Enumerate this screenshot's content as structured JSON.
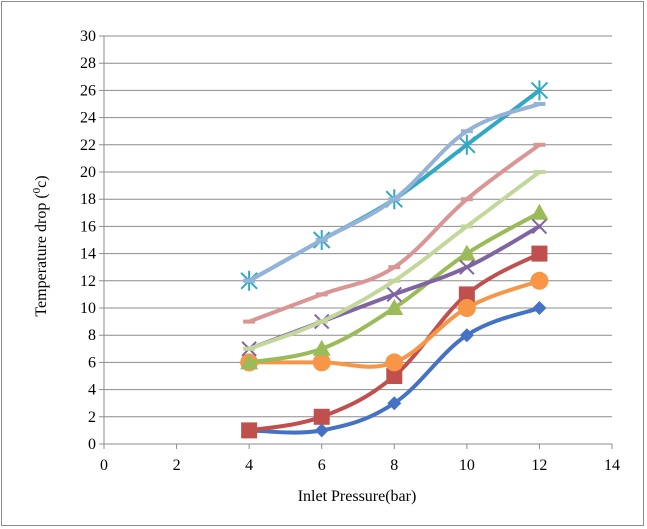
{
  "chart_data": {
    "type": "line",
    "title": "",
    "xlabel": "Inlet Pressure(bar)",
    "ylabel_main": "Temperature drop (",
    "ylabel_sup": "0",
    "ylabel_end": "c)",
    "xlim": [
      0,
      14
    ],
    "ylim": [
      0,
      30
    ],
    "xticks": [
      "0",
      "2",
      "4",
      "6",
      "8",
      "10",
      "12",
      "14"
    ],
    "yticks": [
      "0",
      "2",
      "4",
      "6",
      "8",
      "10",
      "12",
      "14",
      "16",
      "18",
      "20",
      "22",
      "24",
      "26",
      "28",
      "30"
    ],
    "grid": "horizontal",
    "legend": "none",
    "x": [
      4,
      6,
      8,
      10,
      12
    ],
    "series": [
      {
        "color": "#4472C4",
        "marker": "diamond",
        "values": [
          1,
          1,
          3,
          8,
          10
        ]
      },
      {
        "color": "#C0504D",
        "marker": "square",
        "values": [
          1,
          2,
          5,
          11,
          14
        ]
      },
      {
        "color": "#F79646",
        "marker": "circle",
        "values": [
          6,
          6,
          6,
          10,
          12
        ]
      },
      {
        "color": "#9BBB59",
        "marker": "triangle",
        "values": [
          6,
          7,
          10,
          14,
          17
        ]
      },
      {
        "color": "#8064A2",
        "marker": "x",
        "values": [
          7,
          9,
          11,
          13,
          16
        ]
      },
      {
        "color": "#C4D79B",
        "marker": "dash",
        "values": [
          7,
          9,
          12,
          16,
          20
        ]
      },
      {
        "color": "#D99694",
        "marker": "dash",
        "values": [
          9,
          11,
          13,
          18,
          22
        ]
      },
      {
        "color": "#31A8C4",
        "marker": "star",
        "values": [
          12,
          15,
          18,
          22,
          26
        ]
      },
      {
        "color": "#95B3D7",
        "marker": "dash",
        "values": [
          12,
          15,
          18,
          23,
          25
        ]
      }
    ]
  }
}
